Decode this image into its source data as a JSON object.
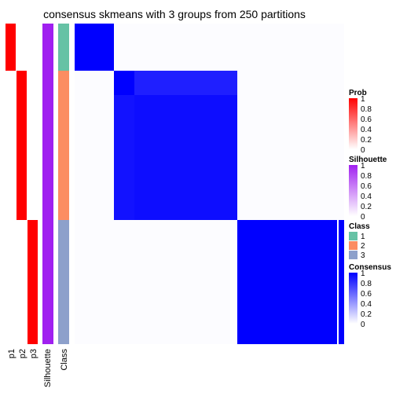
{
  "chart_data": {
    "type": "heatmap",
    "title": "consensus skmeans with 3 groups from 250 partitions",
    "column_labels": [
      "p1",
      "p2",
      "p3",
      "Silhouette",
      "Class"
    ],
    "groups": [
      {
        "class": 1,
        "p1": 1,
        "p2": 0,
        "p3": 0,
        "silhouette": 1
      },
      {
        "class": 2,
        "p1": 0,
        "p2": 1,
        "p3": 0,
        "silhouette": 1
      },
      {
        "class": 3,
        "p1": 0,
        "p2": 0,
        "p3": 1,
        "silhouette": 1
      }
    ],
    "consensus_blocks": [
      {
        "group": 1,
        "value": 1
      },
      {
        "group": 2,
        "value": 0.95
      },
      {
        "group": 3,
        "value": 1
      }
    ],
    "legends": [
      {
        "title": "Prob",
        "ticks": [
          "1",
          "0.8",
          "0.6",
          "0.4",
          "0.2",
          "0"
        ],
        "low": "#ffffff",
        "high": "#ff0000"
      },
      {
        "title": "Silhouette",
        "ticks": [
          "1",
          "0.8",
          "0.6",
          "0.4",
          "0.2",
          "0"
        ],
        "low": "#ffffff",
        "high": "#a020f0"
      },
      {
        "title": "Class",
        "items": [
          {
            "label": "1",
            "color": "#66c2a5"
          },
          {
            "label": "2",
            "color": "#fc8d62"
          },
          {
            "label": "3",
            "color": "#8da0cb"
          }
        ]
      },
      {
        "title": "Consensus",
        "ticks": [
          "1",
          "0.8",
          "0.6",
          "0.4",
          "0.2",
          "0"
        ],
        "low": "#ffffff",
        "high": "#0000ff"
      }
    ]
  }
}
